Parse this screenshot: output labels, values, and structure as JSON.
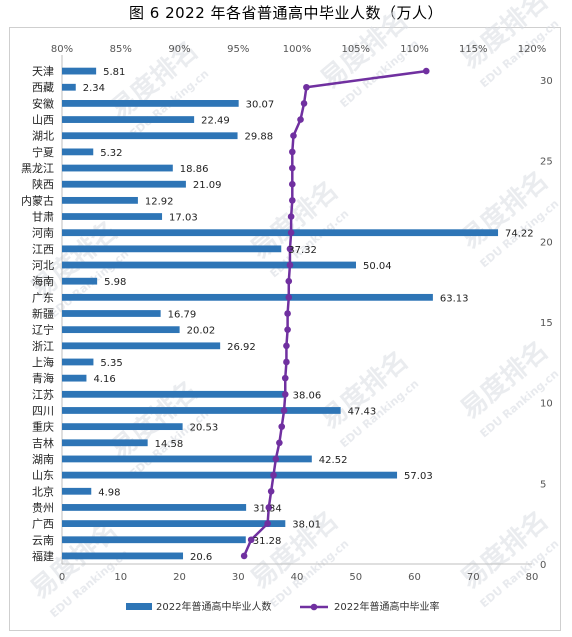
{
  "title": "图 6  2022 年各省普通高中毕业人数（万人）",
  "watermark": {
    "text": "易度排名",
    "subtext": "EDU Ranking.cn"
  },
  "colors": {
    "bar": "#2e75b6",
    "line": "#7030a0",
    "axis": "#bfbfbf",
    "grid": "#d9d9d9"
  },
  "chart_data": {
    "type": "bar",
    "orientation": "horizontal",
    "title": "图 6  2022 年各省普通高中毕业人数（万人）",
    "categories": [
      "天津",
      "西藏",
      "安徽",
      "山西",
      "湖北",
      "宁夏",
      "黑龙江",
      "陕西",
      "内蒙古",
      "甘肃",
      "河南",
      "江西",
      "河北",
      "海南",
      "广东",
      "新疆",
      "辽宁",
      "浙江",
      "上海",
      "青海",
      "江苏",
      "四川",
      "重庆",
      "吉林",
      "湖南",
      "山东",
      "北京",
      "贵州",
      "广西",
      "云南",
      "福建"
    ],
    "series": [
      {
        "name": "2022年普通高中毕业人数",
        "type": "bar",
        "axis": "bottom",
        "values": [
          5.81,
          2.34,
          30.07,
          22.49,
          29.88,
          5.32,
          18.86,
          21.09,
          12.92,
          17.03,
          74.22,
          37.32,
          50.04,
          5.98,
          63.13,
          16.79,
          20.02,
          26.92,
          5.35,
          4.16,
          38.06,
          47.43,
          20.53,
          14.58,
          42.52,
          57.03,
          4.98,
          31.34,
          38.01,
          31.28,
          20.6
        ],
        "labels": [
          "5.81",
          "2.34",
          "30.07",
          "22.49",
          "29.88",
          "5.32",
          "18.86",
          "21.09",
          "12.92",
          "17.03",
          "74.22",
          "37.32",
          "50.04",
          "5.98",
          "63.13",
          "16.79",
          "20.02",
          "26.92",
          "5.35",
          "4.16",
          "38.06",
          "47.43",
          "20.53",
          "14.58",
          "42.52",
          "57.03",
          "4.98",
          "31.34",
          "38.01",
          "31.28",
          "20.6"
        ]
      },
      {
        "name": "2022年普通高中毕业率",
        "type": "line",
        "axis": "top",
        "unit": "%",
        "values": [
          111.0,
          100.8,
          100.6,
          100.3,
          99.7,
          99.6,
          99.6,
          99.6,
          99.6,
          99.5,
          99.5,
          99.4,
          99.4,
          99.3,
          99.3,
          99.2,
          99.2,
          99.1,
          99.1,
          99.0,
          99.0,
          98.9,
          98.7,
          98.5,
          98.2,
          98.0,
          97.8,
          97.6,
          97.5,
          96.1,
          95.5
        ]
      }
    ],
    "axes": {
      "bottom": {
        "min": 0,
        "max": 80,
        "ticks": [
          "0",
          "10",
          "20",
          "30",
          "40",
          "50",
          "60",
          "70",
          "80"
        ]
      },
      "top": {
        "min": 80,
        "max": 120,
        "ticks": [
          "80%",
          "85%",
          "90%",
          "95%",
          "100%",
          "105%",
          "110%",
          "115%",
          "120%"
        ]
      },
      "right": {
        "min": 0,
        "max": 30,
        "ticks": [
          "0",
          "5",
          "10",
          "15",
          "20",
          "25",
          "30"
        ]
      }
    },
    "grid": false,
    "legend_position": "bottom"
  }
}
